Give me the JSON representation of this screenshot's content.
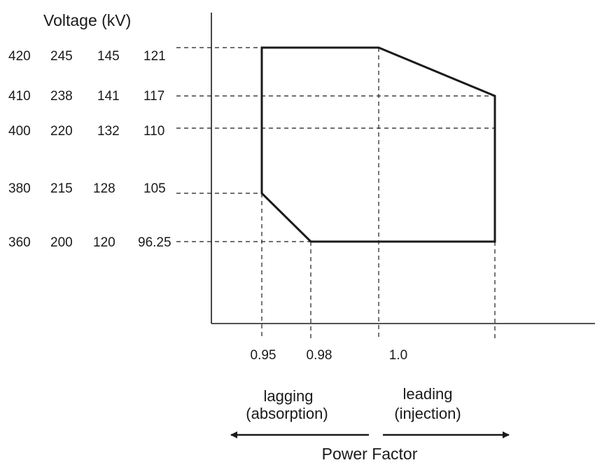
{
  "y_axis_title": "Voltage (kV)",
  "voltage_levels": [
    [
      "420",
      "245",
      "145",
      "121"
    ],
    [
      "410",
      "238",
      "141",
      "117"
    ],
    [
      "400",
      "220",
      "132",
      "110"
    ],
    [
      "380",
      "215",
      "128",
      "105"
    ],
    [
      "360",
      "200",
      "120",
      "96.25"
    ]
  ],
  "power_factor_ticks": [
    "0.95",
    "0.98",
    "1.0"
  ],
  "lagging": {
    "line1": "lagging",
    "line2": "(absorption)"
  },
  "leading": {
    "line1": "leading",
    "line2": "(injection)"
  },
  "x_axis_title": "Power Factor"
}
